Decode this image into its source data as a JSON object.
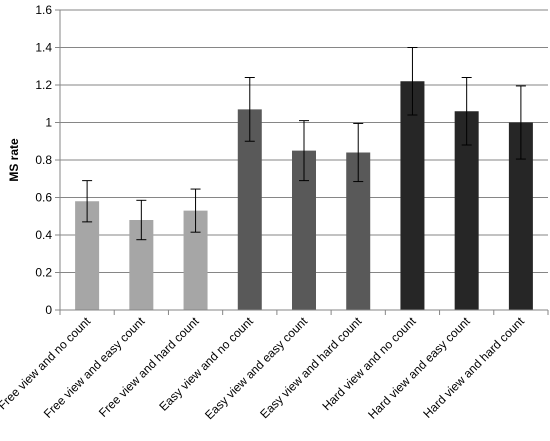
{
  "chart_data": {
    "type": "bar",
    "title": "",
    "xlabel": "",
    "ylabel": "MS rate",
    "ylim": [
      0,
      1.6
    ],
    "yticks": [
      0,
      0.2,
      0.4,
      0.6,
      0.8,
      1,
      1.2,
      1.4,
      1.6
    ],
    "ytick_labels": [
      "0",
      "0.2",
      "0.4",
      "0.6",
      "0.8",
      "1",
      "1.2",
      "1.4",
      "1.6"
    ],
    "grid": "horizontal",
    "legend": "none",
    "categories": [
      "Free view and no count",
      "Free view and easy count",
      "Free view and hard count",
      "Easy view and no count",
      "Easy view and easy count",
      "Easy view and hard count",
      "Hard view and no count",
      "Hard view and easy count",
      "Hard view and hard count"
    ],
    "values": [
      0.58,
      0.48,
      0.53,
      1.07,
      0.85,
      0.84,
      1.22,
      1.06,
      1.0
    ],
    "error_bars": [
      0.11,
      0.105,
      0.115,
      0.17,
      0.16,
      0.155,
      0.18,
      0.18,
      0.195
    ],
    "bar_colors": [
      "#a6a6a6",
      "#a6a6a6",
      "#a6a6a6",
      "#595959",
      "#595959",
      "#595959",
      "#262626",
      "#262626",
      "#262626"
    ]
  },
  "colors": {
    "gridline": "#868686",
    "axis": "#868686",
    "error_bar": "#000000"
  }
}
